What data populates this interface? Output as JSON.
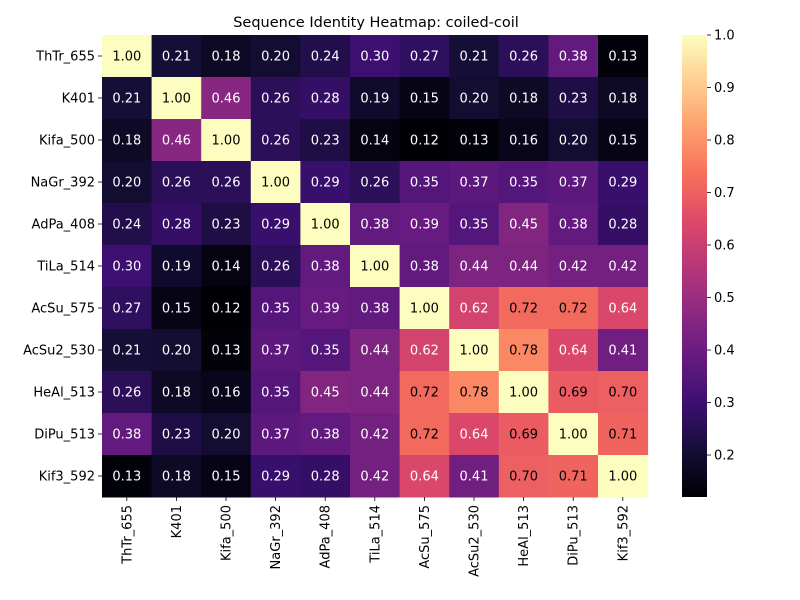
{
  "chart_data": {
    "type": "heatmap",
    "title": "Sequence Identity Heatmap: coiled-coil",
    "xlabel": "",
    "ylabel": "",
    "x_labels": [
      "ThTr_655",
      "K401",
      "Kifa_500",
      "NaGr_392",
      "AdPa_408",
      "TiLa_514",
      "AcSu_575",
      "AcSu2_530",
      "HeAl_513",
      "DiPu_513",
      "Kif3_592"
    ],
    "y_labels": [
      "ThTr_655",
      "K401",
      "Kifa_500",
      "NaGr_392",
      "AdPa_408",
      "TiLa_514",
      "AcSu_575",
      "AcSu2_530",
      "HeAl_513",
      "DiPu_513",
      "Kif3_592"
    ],
    "values": [
      [
        1.0,
        0.21,
        0.18,
        0.2,
        0.24,
        0.3,
        0.27,
        0.21,
        0.26,
        0.38,
        0.13
      ],
      [
        0.21,
        1.0,
        0.46,
        0.26,
        0.28,
        0.19,
        0.15,
        0.2,
        0.18,
        0.23,
        0.18
      ],
      [
        0.18,
        0.46,
        1.0,
        0.26,
        0.23,
        0.14,
        0.12,
        0.13,
        0.16,
        0.2,
        0.15
      ],
      [
        0.2,
        0.26,
        0.26,
        1.0,
        0.29,
        0.26,
        0.35,
        0.37,
        0.35,
        0.37,
        0.29
      ],
      [
        0.24,
        0.28,
        0.23,
        0.29,
        1.0,
        0.38,
        0.39,
        0.35,
        0.45,
        0.38,
        0.28
      ],
      [
        0.3,
        0.19,
        0.14,
        0.26,
        0.38,
        1.0,
        0.38,
        0.44,
        0.44,
        0.42,
        0.42
      ],
      [
        0.27,
        0.15,
        0.12,
        0.35,
        0.39,
        0.38,
        1.0,
        0.62,
        0.72,
        0.72,
        0.64
      ],
      [
        0.21,
        0.2,
        0.13,
        0.37,
        0.35,
        0.44,
        0.62,
        1.0,
        0.78,
        0.64,
        0.41
      ],
      [
        0.26,
        0.18,
        0.16,
        0.35,
        0.45,
        0.44,
        0.72,
        0.78,
        1.0,
        0.69,
        0.7
      ],
      [
        0.38,
        0.23,
        0.2,
        0.37,
        0.38,
        0.42,
        0.72,
        0.64,
        0.69,
        1.0,
        0.71
      ],
      [
        0.13,
        0.18,
        0.15,
        0.29,
        0.28,
        0.42,
        0.64,
        0.41,
        0.7,
        0.71,
        1.0
      ]
    ],
    "colormap": "magma",
    "value_range": [
      0.12,
      1.0
    ],
    "colorbar_ticks": [
      0.2,
      0.3,
      0.4,
      0.5,
      0.6,
      0.7,
      0.8,
      0.9,
      1.0
    ],
    "colorbar_tick_labels": [
      "0.2",
      "0.3",
      "0.4",
      "0.5",
      "0.6",
      "0.7",
      "0.8",
      "0.9",
      "1.0"
    ],
    "annotations": "cell values shown with two decimals",
    "grid": false,
    "legend": "colorbar on right"
  }
}
